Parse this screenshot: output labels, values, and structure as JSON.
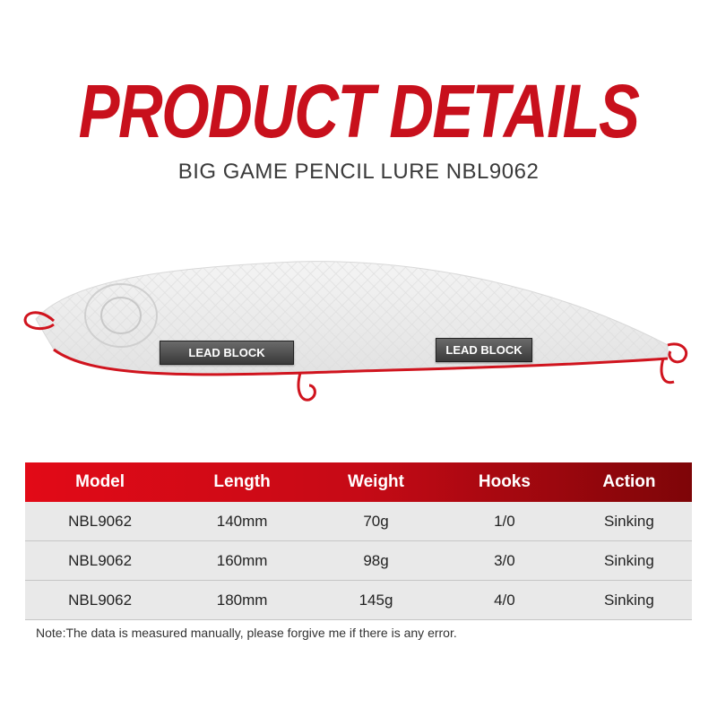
{
  "header": {
    "title": "PRODUCT DETAILS",
    "subtitle": "BIG GAME PENCIL LURE NBL9062"
  },
  "lure": {
    "labels": [
      "LEAD BLOCK",
      "LEAD BLOCK"
    ],
    "accent": "#d0141e"
  },
  "table": {
    "headers": [
      "Model",
      "Length",
      "Weight",
      "Hooks",
      "Action"
    ],
    "rows": [
      [
        "NBL9062",
        "140mm",
        "70g",
        "1/0",
        "Sinking"
      ],
      [
        "NBL9062",
        "160mm",
        "98g",
        "3/0",
        "Sinking"
      ],
      [
        "NBL9062",
        "180mm",
        "145g",
        "4/0",
        "Sinking"
      ]
    ]
  },
  "note": "Note:The data is measured manually, please forgive me if there is any error."
}
